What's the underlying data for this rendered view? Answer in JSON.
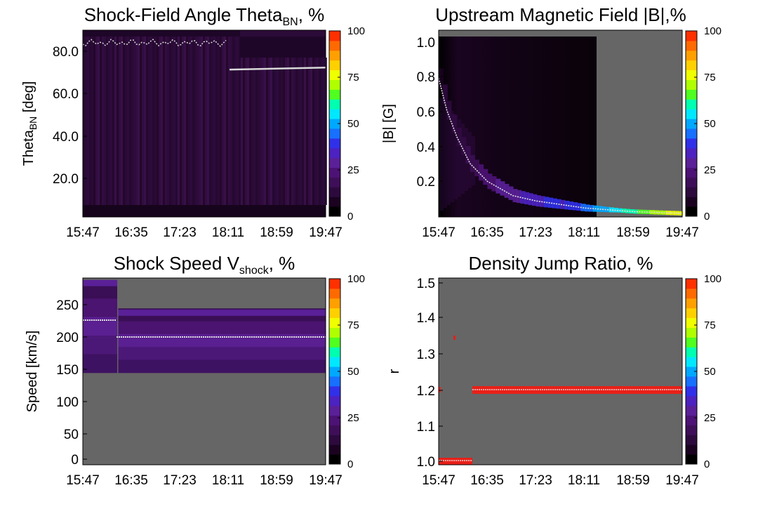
{
  "figure": {
    "colorbar": {
      "ticks": [
        "0",
        "25",
        "50",
        "75",
        "100"
      ],
      "colors": [
        "#000000",
        "#1a0220",
        "#2d0a3d",
        "#3e0f58",
        "#4d1275",
        "#5a2098",
        "#4c22c0",
        "#3030e8",
        "#1870ff",
        "#00a8ff",
        "#00e8ff",
        "#00ffb0",
        "#50ff20",
        "#b0ff00",
        "#f0ff00",
        "#ffd000",
        "#ffa000",
        "#ff6a00",
        "#ff3000"
      ]
    },
    "time_ticks": [
      "15:47",
      "16:35",
      "17:23",
      "18:11",
      "18:59",
      "19:47"
    ],
    "panels": [
      {
        "id": "theta_bn",
        "title_main": "Shock-Field Angle Theta",
        "title_sub": "BN",
        "title_tail": ", %",
        "ylabel_main": "Theta",
        "ylabel_sub": "BN",
        "ylabel_tail": " [deg]",
        "yticks": [
          "20.0",
          "40.0",
          "60.0",
          "80.0"
        ]
      },
      {
        "id": "b_field",
        "title_main": "Upstream Magnetic Field |B|,%",
        "ylabel_main": "|B| [G]",
        "yticks": [
          "0.2",
          "0.4",
          "0.6",
          "0.8",
          "1.0"
        ]
      },
      {
        "id": "v_shock",
        "title_main": "Shock Speed V",
        "title_sub": "shock",
        "title_tail": ", %",
        "ylabel_main": "Speed [km/s]",
        "yticks": [
          "0",
          "50",
          "100",
          "150",
          "200",
          "250"
        ]
      },
      {
        "id": "density_jump",
        "title_main": "Density Jump Ratio, %",
        "ylabel_main": "r",
        "yticks": [
          "1.0",
          "1.1",
          "1.2",
          "1.3",
          "1.4",
          "1.5"
        ]
      }
    ]
  },
  "chart_data": [
    {
      "type": "heatmap",
      "title": "Shock-Field Angle ThetaBN, %",
      "ylabel": "ThetaBN [deg]",
      "x_range": [
        "15:47",
        "19:47"
      ],
      "ylim": [
        0,
        90
      ],
      "colorbar_range": [
        0,
        100
      ],
      "median_line": [
        {
          "x": "15:47",
          "y": 88
        },
        {
          "x": "18:11",
          "y": 88
        },
        {
          "x": "18:12",
          "y": 71
        },
        {
          "x": "19:47",
          "y": 72
        }
      ],
      "background_level_percent": 7
    },
    {
      "type": "heatmap",
      "title": "Upstream Magnetic Field |B|,%",
      "ylabel": "|B| [G]",
      "x_range": [
        "15:47",
        "19:47"
      ],
      "ylim": [
        0,
        1.05
      ],
      "colorbar_range": [
        0,
        100
      ],
      "median_line": [
        {
          "x": "15:47",
          "y": 0.78
        },
        {
          "x": "15:55",
          "y": 0.6
        },
        {
          "x": "16:05",
          "y": 0.45
        },
        {
          "x": "16:18",
          "y": 0.3
        },
        {
          "x": "16:35",
          "y": 0.2
        },
        {
          "x": "17:00",
          "y": 0.12
        },
        {
          "x": "17:23",
          "y": 0.09
        },
        {
          "x": "18:11",
          "y": 0.05
        },
        {
          "x": "18:59",
          "y": 0.03
        },
        {
          "x": "19:47",
          "y": 0.02
        }
      ],
      "data_coverage_end": "18:30"
    },
    {
      "type": "heatmap",
      "title": "Shock Speed Vshock, %",
      "ylabel": "Speed [km/s]",
      "x_range": [
        "15:47",
        "19:47"
      ],
      "ylim": [
        0,
        290
      ],
      "colorbar_range": [
        0,
        100
      ],
      "median_line": [
        {
          "x": "15:47",
          "y": 226
        },
        {
          "x": "16:21",
          "y": 226
        },
        {
          "x": "16:22",
          "y": 200
        },
        {
          "x": "19:47",
          "y": 200
        }
      ],
      "high_band": [
        {
          "x_start": "15:47",
          "x_end": "16:21",
          "y_low": 280,
          "y_high": 290,
          "percent": 25
        },
        {
          "x_start": "16:22",
          "x_end": "19:47",
          "y_low": 232,
          "y_high": 242,
          "percent": 25
        }
      ],
      "data_lower_bound": 140
    },
    {
      "type": "heatmap",
      "title": "Density Jump Ratio, %",
      "ylabel": "r",
      "x_range": [
        "15:47",
        "19:47"
      ],
      "ylim": [
        0.985,
        1.51
      ],
      "colorbar_range": [
        0,
        100
      ],
      "median_line": [
        {
          "x": "15:47",
          "y": 1.0
        },
        {
          "x": "16:31",
          "y": 1.0
        },
        {
          "x": "16:32",
          "y": 1.2
        },
        {
          "x": "19:47",
          "y": 1.2
        }
      ],
      "bands": [
        {
          "x_start": "15:47",
          "x_end": "16:31",
          "y_low": 0.99,
          "y_high": 1.01,
          "percent": 100
        },
        {
          "x_start": "16:32",
          "x_end": "19:47",
          "y_low": 1.19,
          "y_high": 1.21,
          "percent": 100
        }
      ],
      "isolated_points": [
        {
          "x": "16:05",
          "y": 1.34
        },
        {
          "x": "15:49",
          "y": 1.2
        }
      ]
    }
  ]
}
